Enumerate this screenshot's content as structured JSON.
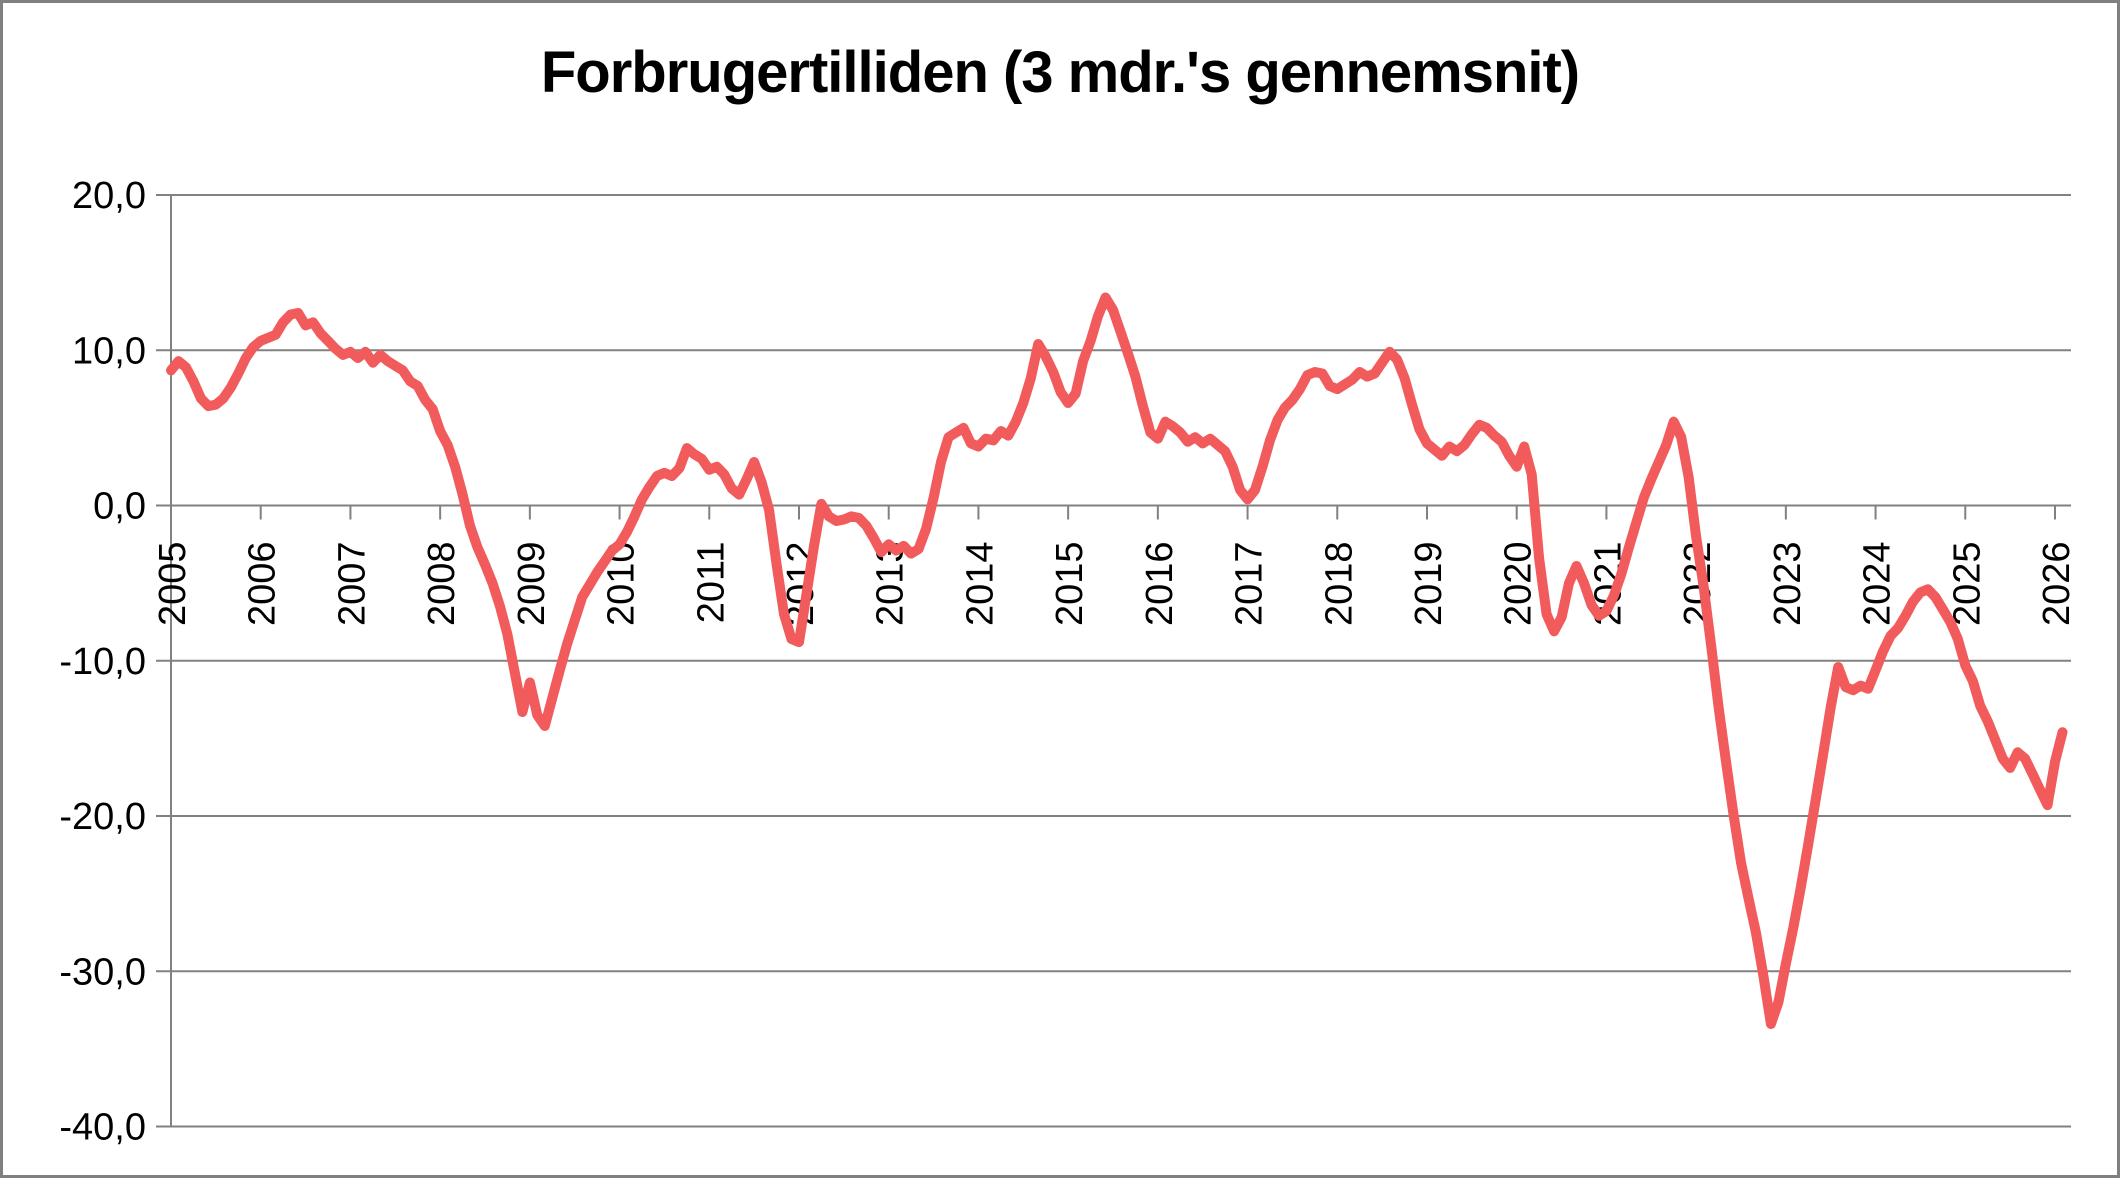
{
  "chart_data": {
    "type": "line",
    "title": "Forbrugertilliden (3 mdr.'s gennemsnit)",
    "xlabel": "",
    "ylabel": "",
    "ylim": [
      -40,
      20
    ],
    "grid": "horizontal",
    "legend": "none",
    "decimal_separator": ",",
    "y_ticks": [
      20,
      10,
      0,
      -10,
      -20,
      -30,
      -40
    ],
    "y_tick_labels": [
      "20,0",
      "10,0",
      "0,0",
      "-10,0",
      "-20,0",
      "-30,0",
      "-40,0"
    ],
    "x_tick_labels": [
      "2005",
      "2006",
      "2007",
      "2008",
      "2009",
      "2010",
      "2011",
      "2012",
      "2013",
      "2014",
      "2015",
      "2016",
      "2017",
      "2018",
      "2019",
      "2020",
      "2021",
      "2022",
      "2023",
      "2024",
      "2025",
      "2026"
    ],
    "series": [
      {
        "name": "Forbrugertilliden (3 mdr.'s gennemsnit)",
        "start": "2005-01",
        "frequency": "monthly",
        "values": [
          8.7,
          9.3,
          8.9,
          8.0,
          6.9,
          6.4,
          6.5,
          6.9,
          7.6,
          8.5,
          9.5,
          10.2,
          10.6,
          10.8,
          11.0,
          11.8,
          12.3,
          12.4,
          11.6,
          11.8,
          11.1,
          10.6,
          10.1,
          9.7,
          9.9,
          9.5,
          9.9,
          9.2,
          9.7,
          9.3,
          9.0,
          8.7,
          8.0,
          7.7,
          6.8,
          6.2,
          4.8,
          3.9,
          2.5,
          0.7,
          -1.3,
          -2.7,
          -3.8,
          -5.0,
          -6.5,
          -8.3,
          -10.8,
          -13.3,
          -11.4,
          -13.5,
          -14.2,
          -12.4,
          -10.6,
          -8.9,
          -7.4,
          -5.9,
          -5.1,
          -4.3,
          -3.6,
          -2.9,
          -2.5,
          -1.7,
          -0.7,
          0.4,
          1.2,
          1.9,
          2.1,
          1.9,
          2.4,
          3.7,
          3.3,
          3.0,
          2.3,
          2.5,
          2.0,
          1.1,
          0.7,
          1.7,
          2.8,
          1.5,
          -0.3,
          -3.8,
          -7.0,
          -8.6,
          -8.8,
          -5.7,
          -2.6,
          0.1,
          -0.7,
          -1.0,
          -0.9,
          -0.7,
          -0.8,
          -1.3,
          -2.1,
          -3.0,
          -2.5,
          -2.9,
          -2.6,
          -3.1,
          -2.8,
          -1.5,
          0.5,
          2.8,
          4.4,
          4.7,
          5.0,
          4.0,
          3.8,
          4.3,
          4.2,
          4.8,
          4.5,
          5.4,
          6.6,
          8.2,
          10.4,
          9.6,
          8.6,
          7.3,
          6.6,
          7.2,
          9.3,
          10.6,
          12.2,
          13.4,
          12.6,
          11.2,
          9.8,
          8.3,
          6.4,
          4.7,
          4.3,
          5.4,
          5.1,
          4.7,
          4.1,
          4.4,
          4.0,
          4.3,
          3.9,
          3.5,
          2.5,
          1.0,
          0.4,
          1.0,
          2.5,
          4.2,
          5.5,
          6.3,
          6.8,
          7.5,
          8.4,
          8.6,
          8.5,
          7.7,
          7.5,
          7.8,
          8.1,
          8.6,
          8.3,
          8.5,
          9.2,
          9.9,
          9.4,
          8.2,
          6.5,
          4.9,
          4.0,
          3.6,
          3.2,
          3.8,
          3.5,
          3.9,
          4.6,
          5.2,
          5.0,
          4.5,
          4.1,
          3.2,
          2.5,
          3.8,
          2.0,
          -3.4,
          -7.0,
          -8.1,
          -7.2,
          -5.0,
          -3.9,
          -5.0,
          -6.4,
          -7.1,
          -6.8,
          -5.8,
          -4.4,
          -2.7,
          -1.1,
          0.5,
          1.7,
          2.8,
          3.9,
          5.4,
          4.4,
          1.8,
          -2.0,
          -5.2,
          -9.0,
          -13.0,
          -16.5,
          -19.9,
          -23.0,
          -25.3,
          -27.5,
          -30.3,
          -33.4,
          -32.0,
          -29.5,
          -27.2,
          -24.6,
          -21.8,
          -18.9,
          -16.0,
          -13.0,
          -10.4,
          -11.7,
          -11.9,
          -11.6,
          -11.8,
          -10.6,
          -9.4,
          -8.4,
          -7.9,
          -7.1,
          -6.2,
          -5.6,
          -5.4,
          -5.9,
          -6.7,
          -7.5,
          -8.6,
          -10.3,
          -11.3,
          -12.9,
          -13.9,
          -15.1,
          -16.3,
          -16.9,
          -15.9,
          -16.3,
          -17.3,
          -18.3,
          -19.3,
          -16.5,
          -14.6
        ]
      }
    ],
    "colors": {
      "line": "#F25B5B",
      "grid": "#818181",
      "axis": "#818181",
      "text": "#000000",
      "background": "#FFFFFF",
      "border": "#808080"
    }
  }
}
